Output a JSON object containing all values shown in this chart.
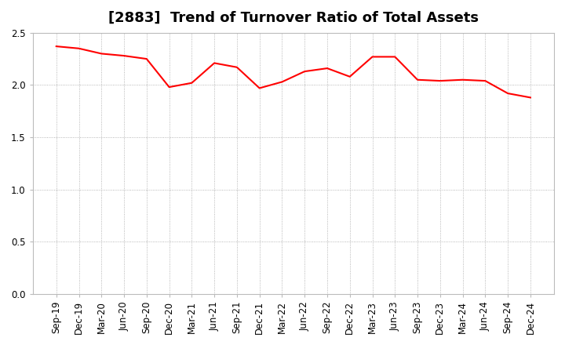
{
  "title": "[2883]  Trend of Turnover Ratio of Total Assets",
  "x_labels": [
    "Sep-19",
    "Dec-19",
    "Mar-20",
    "Jun-20",
    "Sep-20",
    "Dec-20",
    "Mar-21",
    "Jun-21",
    "Sep-21",
    "Dec-21",
    "Mar-22",
    "Jun-22",
    "Sep-22",
    "Dec-22",
    "Mar-23",
    "Jun-23",
    "Sep-23",
    "Dec-23",
    "Mar-24",
    "Jun-24",
    "Sep-24",
    "Dec-24"
  ],
  "values": [
    2.37,
    2.35,
    2.3,
    2.28,
    2.25,
    1.98,
    2.02,
    2.21,
    2.17,
    1.97,
    2.03,
    2.13,
    2.16,
    2.08,
    2.27,
    2.27,
    2.05,
    2.04,
    2.05,
    2.04,
    1.92,
    1.88
  ],
  "line_color": "#ff0000",
  "line_width": 1.5,
  "ylim": [
    0.0,
    2.5
  ],
  "yticks": [
    0.0,
    0.5,
    1.0,
    1.5,
    2.0,
    2.5
  ],
  "background_color": "#ffffff",
  "grid_color": "#999999",
  "title_fontsize": 13,
  "tick_fontsize": 8.5,
  "spine_color": "#bbbbbb"
}
